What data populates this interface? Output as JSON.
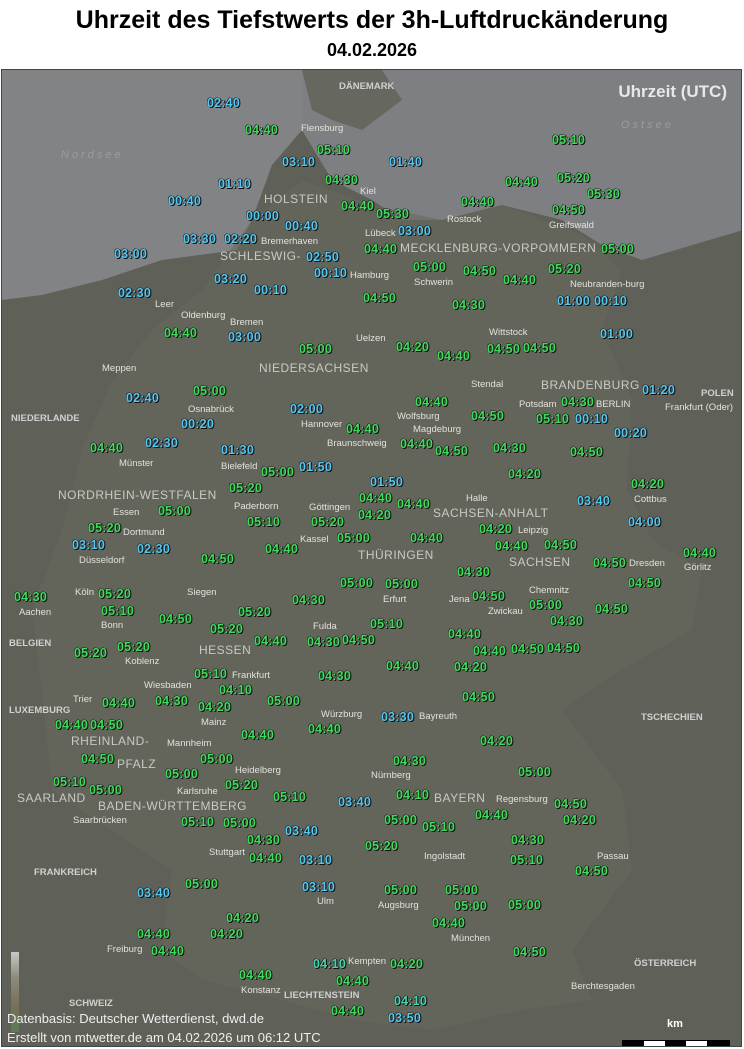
{
  "title": "Uhrzeit des Tiefstwerts der 3h-Luftdruckänderung",
  "date": "04.02.2026",
  "unit_label": "Uhrzeit (UTC)",
  "footer": {
    "source": "Datenbasis: Deutscher Wetterdienst, dwd.de",
    "created": "Erstellt von mtwetter.de am 04.02.2026 um 06:12 UTC"
  },
  "scale": {
    "unit": "km",
    "min": "0",
    "max": "100"
  },
  "colors": {
    "late": "#3ddc5a",
    "early": "#52c8f2",
    "land": "#5f6158",
    "sea": "#818385"
  },
  "seas": [
    "Nordsee",
    "Ostsee"
  ],
  "countries": [
    "DÄNEMARK",
    "NIEDERLANDE",
    "POLEN",
    "BELGIEN",
    "LUXEMBURG",
    "TSCHECHIEN",
    "FRANKREICH",
    "ÖSTERREICH",
    "SCHWEIZ",
    "LIECHTENSTEIN"
  ],
  "regions": [
    "SCHLESWIG-",
    "HOLSTEIN",
    "MECKLENBURG-VORPOMMERN",
    "NIEDERSACHSEN",
    "BRANDENBURG",
    "SACHSEN-ANHALT",
    "NORDRHEIN-WESTFALEN",
    "THÜRINGEN",
    "SACHSEN",
    "HESSEN",
    "RHEINLAND-",
    "PFALZ",
    "SAARLAND",
    "BAYERN",
    "BADEN-WÜRTTEMBERG"
  ],
  "cities": [
    "Flensburg",
    "Kiel",
    "Lübeck",
    "Rostock",
    "Greifswald",
    "Schwerin",
    "Hamburg",
    "Bremerhaven",
    "Bremen",
    "Oldenburg",
    "Leer",
    "Meppen",
    "Uelzen",
    "Wittstock",
    "Neubranden-burg",
    "Stendal",
    "Hannover",
    "Wolfsburg",
    "Braunschweig",
    "Magdeburg",
    "Potsdam",
    "BERLIN",
    "Frankfurt (Oder)",
    "Osnabrück",
    "Münster",
    "Bielefeld",
    "Paderborn",
    "Göttingen",
    "Kassel",
    "Halle",
    "Leipzig",
    "Cottbus",
    "Dresden",
    "Görlitz",
    "Essen",
    "Dortmund",
    "Düsseldorf",
    "Köln",
    "Bonn",
    "Aachen",
    "Siegen",
    "Erfurt",
    "Jena",
    "Chemnitz",
    "Zwickau",
    "Fulda",
    "Koblenz",
    "Wiesbaden",
    "Frankfurt",
    "Mainz",
    "Trier",
    "Würzburg",
    "Bayreuth",
    "Mannheim",
    "Heidelberg",
    "Saarbrücken",
    "Nürnberg",
    "Karlsruhe",
    "Stuttgart",
    "Regensburg",
    "Ingolstadt",
    "Passau",
    "Ulm",
    "Augsburg",
    "München",
    "Freiburg",
    "Kempten",
    "Konstanz",
    "Berchtesgaden"
  ],
  "times": [
    "02:40",
    "04:40",
    "05:10",
    "03:10",
    "01:40",
    "05:10",
    "01:10",
    "04:30",
    "04:40",
    "05:20",
    "05:30",
    "00:40",
    "04:40",
    "05:30",
    "04:40",
    "04:50",
    "00:00",
    "00:40",
    "03:00",
    "03:30",
    "02:20",
    "04:40",
    "05:00",
    "03:00",
    "02:50",
    "00:10",
    "05:00",
    "04:50",
    "04:40",
    "05:20",
    "03:20",
    "00:10",
    "02:30",
    "04:50",
    "04:30",
    "01:00",
    "00:10",
    "04:40",
    "03:00",
    "01:00",
    "05:00",
    "04:20",
    "04:40",
    "04:50",
    "04:50",
    "05:00",
    "02:40",
    "01:20",
    "04:40",
    "02:00",
    "04:30",
    "05:10",
    "00:10",
    "04:50",
    "04:40",
    "00:20",
    "04:40",
    "04:50",
    "00:20",
    "02:30",
    "04:40",
    "01:30",
    "04:30",
    "04:50",
    "01:50",
    "04:20",
    "05:20",
    "05:00",
    "01:50",
    "04:40",
    "04:20",
    "04:20",
    "05:00",
    "04:40",
    "03:40",
    "05:10",
    "05:20",
    "05:00",
    "04:20",
    "05:20",
    "04:00",
    "03:10",
    "04:40",
    "04:40",
    "04:50",
    "02:30",
    "04:40",
    "04:50",
    "04:50",
    "04:40",
    "04:30",
    "05:00",
    "05:00",
    "04:50",
    "04:30",
    "05:20",
    "05:10",
    "04:30",
    "04:50",
    "05:00",
    "04:50",
    "04:50",
    "05:20",
    "05:10",
    "04:30",
    "05:20",
    "04:40",
    "04:40",
    "04:30",
    "04:50",
    "04:40",
    "04:50",
    "04:50",
    "05:20",
    "05:20",
    "04:20",
    "04:40",
    "05:10",
    "04:30",
    "04:10",
    "04:30",
    "04:20",
    "05:00",
    "04:50",
    "04:40",
    "03:30",
    "04:40",
    "04:50",
    "04:40",
    "04:40",
    "04:20",
    "04:50",
    "05:00",
    "04:30",
    "05:00",
    "05:00",
    "05:10",
    "05:00",
    "05:20",
    "04:10",
    "05:10",
    "03:40",
    "04:50",
    "04:20",
    "04:40",
    "05:10",
    "05:00",
    "05:00",
    "05:10",
    "03:40",
    "04:30",
    "04:30",
    "05:20",
    "04:40",
    "03:10",
    "05:10",
    "04:50",
    "05:00",
    "03:10",
    "03:40",
    "05:00",
    "05:00",
    "05:00",
    "05:00",
    "04:20",
    "04:20",
    "04:40",
    "04:40",
    "04:40",
    "04:50",
    "04:10",
    "04:40",
    "04:20",
    "04:40",
    "04:40",
    "04:10",
    "03:50"
  ]
}
